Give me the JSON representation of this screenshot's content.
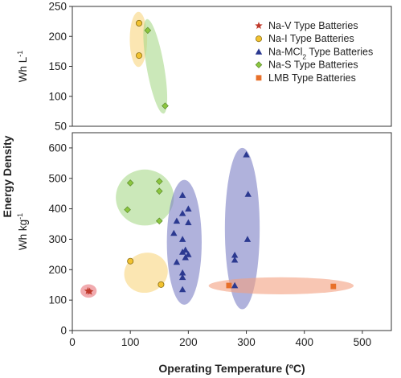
{
  "chart_data": {
    "type": "scatter",
    "xlabel": "Operating Temperature (ºC)",
    "ylabel_shared": "Energy Density",
    "x_ticks": [
      "0",
      "100",
      "200",
      "300",
      "400",
      "500"
    ],
    "xlim": [
      0,
      550
    ],
    "legend_position": "top-right",
    "series": [
      {
        "name": "Na-V Type Batteries",
        "key": "nav",
        "marker": "star",
        "color": "#c0392b",
        "ellipse_color": "#e8737a"
      },
      {
        "name": "Na-I Type Batteries",
        "key": "nai",
        "marker": "circle",
        "color": "#f2c230",
        "ellipse_color": "#f9d57f"
      },
      {
        "name": "Na-MCl",
        "sub": "2",
        "name_suffix": " Type Batteries",
        "key": "nacl",
        "marker": "triangle",
        "color": "#2b3990",
        "ellipse_color": "#7b7fc4"
      },
      {
        "name": "Na-S Type Batteries",
        "key": "nas",
        "marker": "diamond",
        "color": "#8cc63f",
        "ellipse_color": "#a9d88a"
      },
      {
        "name": "LMB Type Batteries",
        "key": "lmb",
        "marker": "square",
        "color": "#e8702a",
        "ellipse_color": "#f4a080"
      }
    ],
    "panels": [
      {
        "id": "volumetric",
        "ylabel": "Wh L",
        "ylabel_sup": "-1",
        "ylim": [
          50,
          250
        ],
        "y_ticks": [
          "50",
          "100",
          "150",
          "200",
          "250"
        ],
        "points": {
          "nai": [
            [
              115,
              222
            ],
            [
              115,
              168
            ]
          ],
          "nas": [
            [
              130,
              210
            ],
            [
              160,
              84
            ]
          ]
        },
        "ellipses": [
          {
            "series": "nai",
            "cx": 114,
            "cy": 195,
            "rx": 15,
            "ry": 46,
            "angle": 0
          },
          {
            "series": "nas",
            "cx": 143,
            "cy": 150,
            "rx": 15,
            "ry": 80,
            "angle": -10
          }
        ]
      },
      {
        "id": "gravimetric",
        "ylabel": "Wh kg",
        "ylabel_sup": "-1",
        "ylim": [
          0,
          650
        ],
        "y_ticks": [
          "0",
          "100",
          "200",
          "300",
          "400",
          "500",
          "600"
        ],
        "points": {
          "nav": [
            [
              27,
              130
            ],
            [
              30,
              128
            ]
          ],
          "nai": [
            [
              100,
              228
            ],
            [
              153,
              151
            ]
          ],
          "nacl": [
            [
              190,
              445
            ],
            [
              200,
              400
            ],
            [
              190,
              385
            ],
            [
              180,
              360
            ],
            [
              200,
              355
            ],
            [
              175,
              320
            ],
            [
              190,
              300
            ],
            [
              195,
              265
            ],
            [
              190,
              258
            ],
            [
              200,
              250
            ],
            [
              195,
              240
            ],
            [
              180,
              225
            ],
            [
              190,
              190
            ],
            [
              190,
              175
            ],
            [
              190,
              135
            ],
            [
              300,
              578
            ],
            [
              303,
              448
            ],
            [
              302,
              300
            ],
            [
              280,
              248
            ],
            [
              280,
              232
            ],
            [
              280,
              148
            ]
          ],
          "nas": [
            [
              100,
              485
            ],
            [
              150,
              490
            ],
            [
              150,
              458
            ],
            [
              95,
              397
            ],
            [
              150,
              360
            ]
          ],
          "lmb": [
            [
              270,
              148
            ],
            [
              450,
              145
            ]
          ]
        },
        "ellipses": [
          {
            "series": "nav",
            "cx": 28,
            "cy": 130,
            "rx": 14,
            "ry": 22,
            "angle": 0
          },
          {
            "series": "nai",
            "cx": 127,
            "cy": 190,
            "rx": 38,
            "ry": 65,
            "angle": -20
          },
          {
            "series": "nas",
            "cx": 125,
            "cy": 437,
            "rx": 50,
            "ry": 92,
            "angle": 0
          },
          {
            "series": "nacl",
            "cx": 193,
            "cy": 290,
            "rx": 30,
            "ry": 205,
            "angle": 0
          },
          {
            "series": "nacl",
            "cx": 293,
            "cy": 335,
            "rx": 30,
            "ry": 265,
            "angle": 0
          },
          {
            "series": "lmb",
            "cx": 360,
            "cy": 147,
            "rx": 125,
            "ry": 28,
            "angle": 0
          }
        ]
      }
    ]
  }
}
